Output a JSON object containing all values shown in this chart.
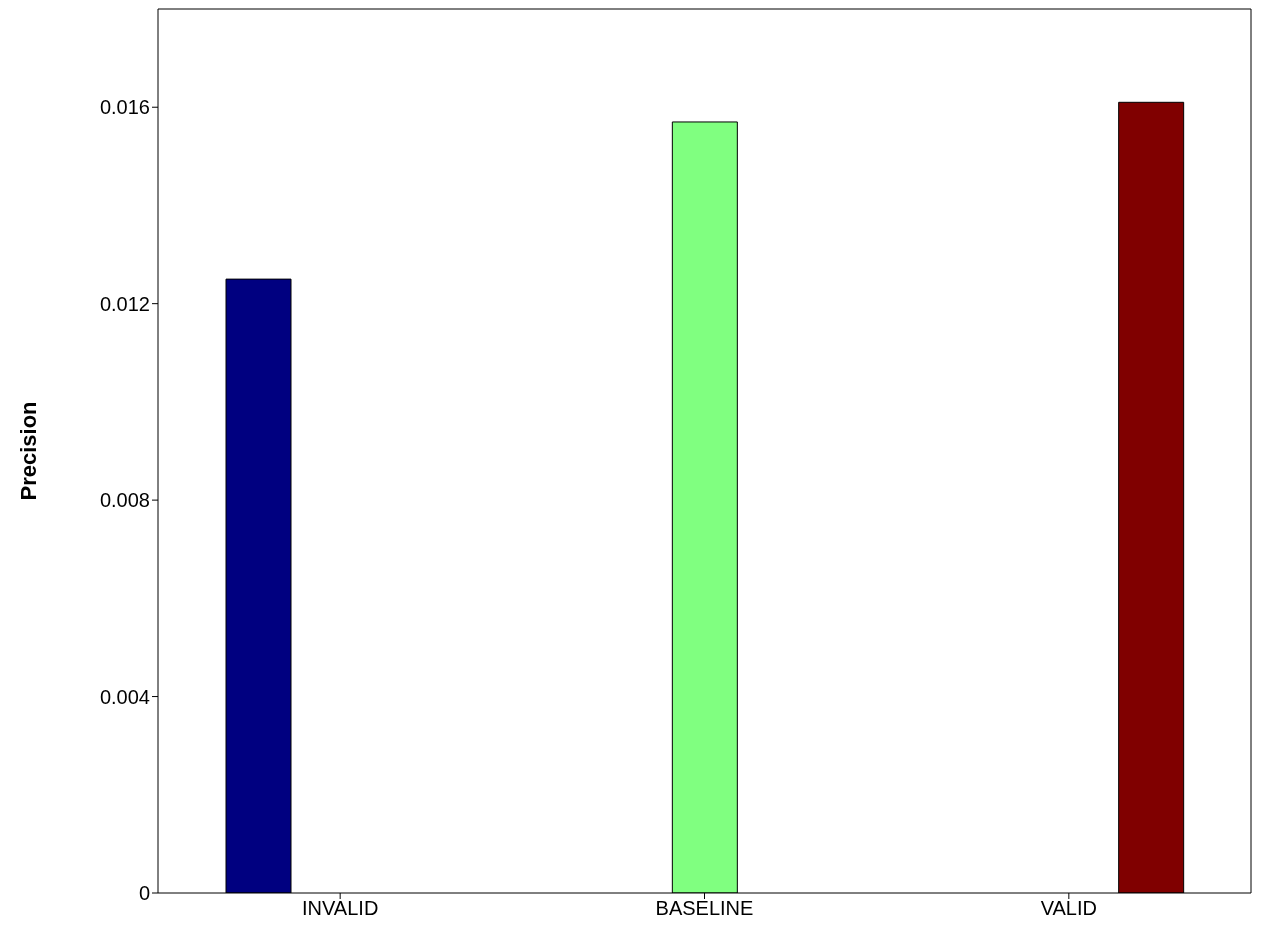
{
  "chart_data": {
    "type": "bar",
    "ylabel": "Precision",
    "categories": [
      "INVALID",
      "BASELINE",
      "VALID"
    ],
    "series": [
      {
        "color": "#000080",
        "values": [
          0.0125,
          null,
          null
        ]
      },
      {
        "color": "#80ff80",
        "values": [
          null,
          0.0157,
          null
        ]
      },
      {
        "color": "#800000",
        "values": [
          null,
          null,
          0.0161
        ]
      }
    ],
    "ylim": [
      0,
      0.018
    ],
    "yticks": [
      0,
      0.004,
      0.008,
      0.012,
      0.016
    ]
  }
}
